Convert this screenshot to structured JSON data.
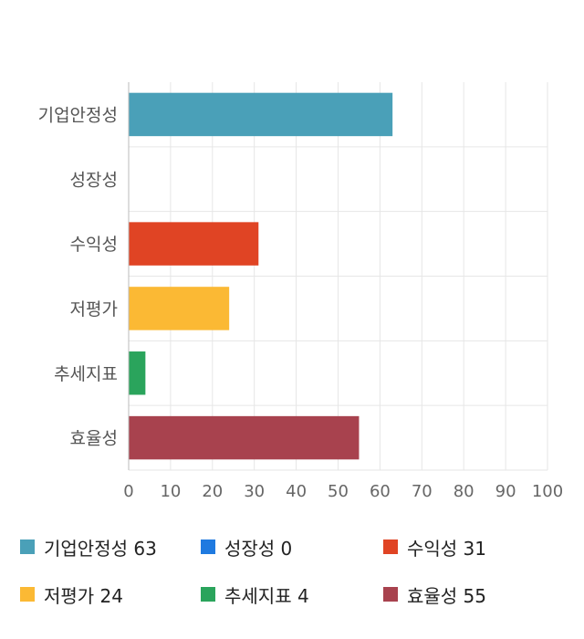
{
  "chart_data": {
    "type": "bar",
    "orientation": "horizontal",
    "categories": [
      "기업안정성",
      "성장성",
      "수익성",
      "저평가",
      "추세지표",
      "효율성"
    ],
    "values": [
      63,
      0,
      31,
      24,
      4,
      55
    ],
    "colors": [
      "#4aa0b8",
      "#1f7ae0",
      "#e04424",
      "#fbb934",
      "#2aa45c",
      "#a8424e"
    ],
    "xlim": [
      0,
      100
    ],
    "xticks": [
      "0",
      "10",
      "20",
      "30",
      "40",
      "50",
      "60",
      "70",
      "80",
      "90",
      "100"
    ],
    "grid": true,
    "legend_position": "bottom"
  },
  "legend": [
    {
      "label": "기업안정성 63",
      "color": "#4aa0b8"
    },
    {
      "label": "성장성 0",
      "color": "#1f7ae0"
    },
    {
      "label": "수익성 31",
      "color": "#e04424"
    },
    {
      "label": "저평가 24",
      "color": "#fbb934"
    },
    {
      "label": "추세지표 4",
      "color": "#2aa45c"
    },
    {
      "label": "효율성 55",
      "color": "#a8424e"
    }
  ]
}
